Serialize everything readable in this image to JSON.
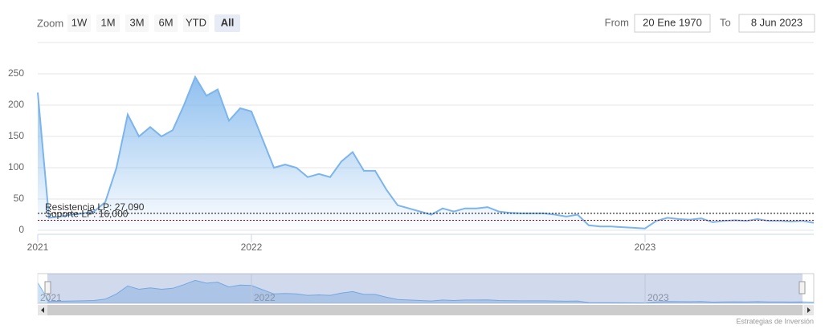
{
  "range_selector": {
    "label": "Zoom",
    "buttons": [
      "1W",
      "1M",
      "3M",
      "6M",
      "YTD",
      "All"
    ],
    "selected": 5
  },
  "date_inputs": {
    "from_label": "From",
    "from": "20 Ene 1970",
    "to_label": "To",
    "to": "8 Jun 2023"
  },
  "chart_data": {
    "type": "area",
    "categories": [
      "2021",
      null,
      null,
      null,
      null,
      null,
      null,
      null,
      null,
      null,
      null,
      null,
      null,
      null,
      null,
      null,
      null,
      null,
      null,
      "2022",
      null,
      null,
      null,
      null,
      null,
      null,
      null,
      null,
      null,
      null,
      null,
      null,
      null,
      null,
      null,
      null,
      null,
      null,
      null,
      null,
      null,
      null,
      null,
      null,
      null,
      null,
      null,
      null,
      null,
      null,
      null,
      null,
      null,
      null,
      "2023",
      null,
      null,
      null,
      null,
      null,
      null,
      null,
      null,
      null,
      null,
      null,
      null,
      null,
      null,
      null
    ],
    "series": [
      {
        "color": "#7cb5ec",
        "values": [
          220,
          20,
          22,
          25,
          27,
          30,
          45,
          100,
          185,
          150,
          165,
          150,
          160,
          200,
          245,
          215,
          225,
          175,
          195,
          190,
          145,
          100,
          105,
          100,
          85,
          90,
          85,
          110,
          125,
          95,
          95,
          65,
          40,
          35,
          30,
          25,
          35,
          30,
          35,
          35,
          37,
          30,
          28,
          27,
          27,
          27,
          25,
          22,
          25,
          8,
          6,
          6,
          5,
          4,
          3,
          15,
          20,
          18,
          17,
          19,
          13,
          15,
          16,
          15,
          18,
          15,
          15,
          14,
          15,
          12
        ]
      }
    ],
    "ylim": [
      0,
      300
    ],
    "yticks": [
      0,
      50,
      100,
      150,
      200,
      250
    ],
    "grid": true,
    "plot_lines": [
      {
        "value": 27.09,
        "label": "Resistencia LP: 27,090",
        "color": "#000000"
      },
      {
        "value": 16,
        "label": "Soporte LP: 16,000",
        "color": "#8b0000"
      }
    ],
    "credits": "Estrategias de Inversión"
  }
}
